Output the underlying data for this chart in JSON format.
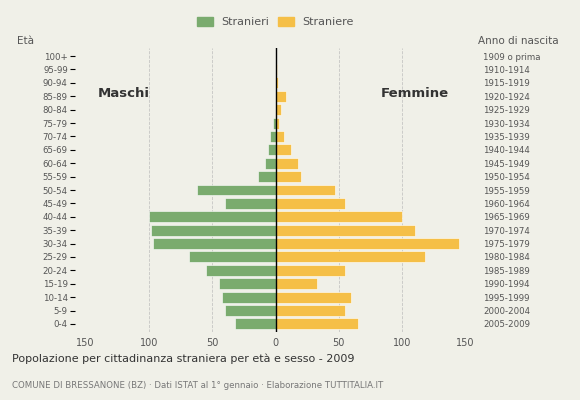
{
  "age_groups": [
    "0-4",
    "5-9",
    "10-14",
    "15-19",
    "20-24",
    "25-29",
    "30-34",
    "35-39",
    "40-44",
    "45-49",
    "50-54",
    "55-59",
    "60-64",
    "65-69",
    "70-74",
    "75-79",
    "80-84",
    "85-89",
    "90-94",
    "95-99",
    "100+"
  ],
  "birth_years": [
    "2005-2009",
    "2000-2004",
    "1995-1999",
    "1990-1994",
    "1985-1989",
    "1980-1984",
    "1975-1979",
    "1970-1974",
    "1965-1969",
    "1960-1964",
    "1955-1959",
    "1950-1954",
    "1945-1949",
    "1940-1944",
    "1935-1939",
    "1930-1934",
    "1925-1929",
    "1920-1924",
    "1915-1919",
    "1910-1914",
    "1909 o prima"
  ],
  "males": [
    32,
    40,
    42,
    45,
    55,
    68,
    97,
    98,
    100,
    40,
    62,
    14,
    8,
    6,
    4,
    2,
    0,
    0,
    0,
    0,
    0
  ],
  "females": [
    65,
    55,
    60,
    33,
    55,
    118,
    145,
    110,
    100,
    55,
    47,
    20,
    18,
    12,
    7,
    3,
    4,
    8,
    2,
    1,
    0
  ],
  "male_color": "#7aab6e",
  "female_color": "#f5bf47",
  "background_color": "#f0f0e8",
  "title": "Popolazione per cittadinanza straniera per età e sesso - 2009",
  "subtitle": "COMUNE DI BRESSANONE (BZ) · Dati ISTAT al 1° gennaio · Elaborazione TUTTITALIA.IT",
  "legend_male": "Stranieri",
  "legend_female": "Straniere",
  "ylabel_age": "Età",
  "ylabel_birth": "Anno di nascita",
  "label_maschi": "Maschi",
  "label_femmine": "Femmine",
  "xlim": 158,
  "grid_color": "#bbbbbb"
}
